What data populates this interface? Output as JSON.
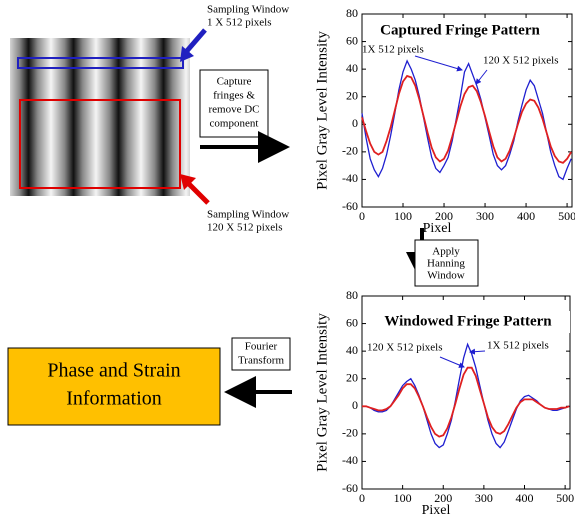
{
  "chart_data": [
    {
      "type": "line",
      "title": "Captured Fringe Pattern",
      "xlabel": "Pixel",
      "ylabel": "Pixel Gray Level Intensity",
      "x": [
        0,
        10,
        20,
        30,
        40,
        50,
        60,
        70,
        80,
        90,
        100,
        110,
        120,
        130,
        140,
        150,
        160,
        170,
        180,
        190,
        200,
        210,
        220,
        230,
        240,
        250,
        260,
        270,
        280,
        290,
        300,
        310,
        320,
        330,
        340,
        350,
        360,
        370,
        380,
        390,
        400,
        410,
        420,
        430,
        440,
        450,
        460,
        470,
        480,
        490,
        500,
        510
      ],
      "series": [
        {
          "name": "1X 512 pixels",
          "color": "#1f1fd0",
          "values": [
            8,
            -10,
            -25,
            -33,
            -38,
            -32,
            -22,
            -8,
            8,
            25,
            38,
            46,
            40,
            32,
            20,
            5,
            -10,
            -24,
            -32,
            -35,
            -30,
            -24,
            -12,
            4,
            20,
            38,
            44,
            36,
            28,
            18,
            5,
            -8,
            -22,
            -30,
            -33,
            -30,
            -22,
            -12,
            2,
            14,
            25,
            32,
            28,
            18,
            8,
            -6,
            -20,
            -30,
            -38,
            -40,
            -32,
            -25
          ]
        },
        {
          "name": "120 X 512 pixels",
          "color": "#e02020",
          "values": [
            5,
            -5,
            -14,
            -20,
            -22,
            -20,
            -12,
            -2,
            10,
            22,
            31,
            35,
            34,
            28,
            18,
            6,
            -6,
            -17,
            -24,
            -27,
            -25,
            -19,
            -9,
            2,
            13,
            22,
            27,
            28,
            24,
            16,
            6,
            -5,
            -16,
            -24,
            -27,
            -25,
            -19,
            -10,
            0,
            9,
            15,
            18,
            17,
            12,
            4,
            -6,
            -16,
            -23,
            -27,
            -28,
            -25,
            -20
          ]
        }
      ],
      "xlim": [
        0,
        512
      ],
      "xticks": [
        0,
        100,
        200,
        300,
        400,
        500
      ],
      "ylim": [
        -60,
        80
      ],
      "yticks": [
        -60,
        -40,
        -20,
        0,
        20,
        40,
        60,
        80
      ]
    },
    {
      "type": "line",
      "title": "Windowed Fringe Pattern",
      "xlabel": "Pixel",
      "ylabel": "Pixel Gray Level Intensity",
      "x": [
        0,
        10,
        20,
        30,
        40,
        50,
        60,
        70,
        80,
        90,
        100,
        110,
        120,
        130,
        140,
        150,
        160,
        170,
        180,
        190,
        200,
        210,
        220,
        230,
        240,
        250,
        260,
        270,
        280,
        290,
        300,
        310,
        320,
        330,
        340,
        350,
        360,
        370,
        380,
        390,
        400,
        410,
        420,
        430,
        440,
        450,
        460,
        470,
        480,
        490,
        500,
        510
      ],
      "series": [
        {
          "name": "1X 512 pixels",
          "color": "#1f1fd0",
          "values": [
            0,
            0,
            -1,
            -3,
            -4,
            -4,
            -3,
            0,
            5,
            10,
            15,
            18,
            20,
            15,
            8,
            0,
            -10,
            -20,
            -27,
            -30,
            -28,
            -20,
            -10,
            4,
            20,
            35,
            45,
            38,
            28,
            15,
            2,
            -10,
            -20,
            -27,
            -30,
            -26,
            -18,
            -10,
            -2,
            4,
            7,
            8,
            6,
            4,
            1,
            -1,
            -2,
            -3,
            -3,
            -2,
            -1,
            0
          ]
        },
        {
          "name": "120 X 512 pixels",
          "color": "#e02020",
          "values": [
            0,
            0,
            -1,
            -2,
            -3,
            -3,
            -2,
            0,
            4,
            8,
            13,
            16,
            16,
            13,
            7,
            0,
            -8,
            -15,
            -20,
            -22,
            -21,
            -16,
            -8,
            2,
            13,
            23,
            28,
            28,
            22,
            12,
            2,
            -8,
            -15,
            -19,
            -20,
            -18,
            -13,
            -7,
            -1,
            3,
            5,
            5,
            5,
            3,
            1,
            -1,
            -2,
            -2,
            -2,
            -1,
            -1,
            0
          ]
        }
      ],
      "xlim": [
        0,
        512
      ],
      "xticks": [
        0,
        100,
        200,
        300,
        400,
        500
      ],
      "ylim": [
        -60,
        80
      ],
      "yticks": [
        -60,
        -40,
        -20,
        0,
        20,
        40,
        60,
        80
      ]
    }
  ],
  "diagram": {
    "top_window_label": [
      "Sampling Window",
      "1 X 512 pixels"
    ],
    "bottom_window_label": [
      "Sampling Window",
      "120 X 512 pixels"
    ],
    "capture_box": [
      "Capture",
      "fringes &",
      "remove DC",
      "component"
    ],
    "hanning_box": [
      "Apply",
      "Hanning",
      "Window"
    ],
    "fourier_box": [
      "Fourier",
      "Transform"
    ],
    "result_box": [
      "Phase and Strain",
      "Information"
    ]
  }
}
